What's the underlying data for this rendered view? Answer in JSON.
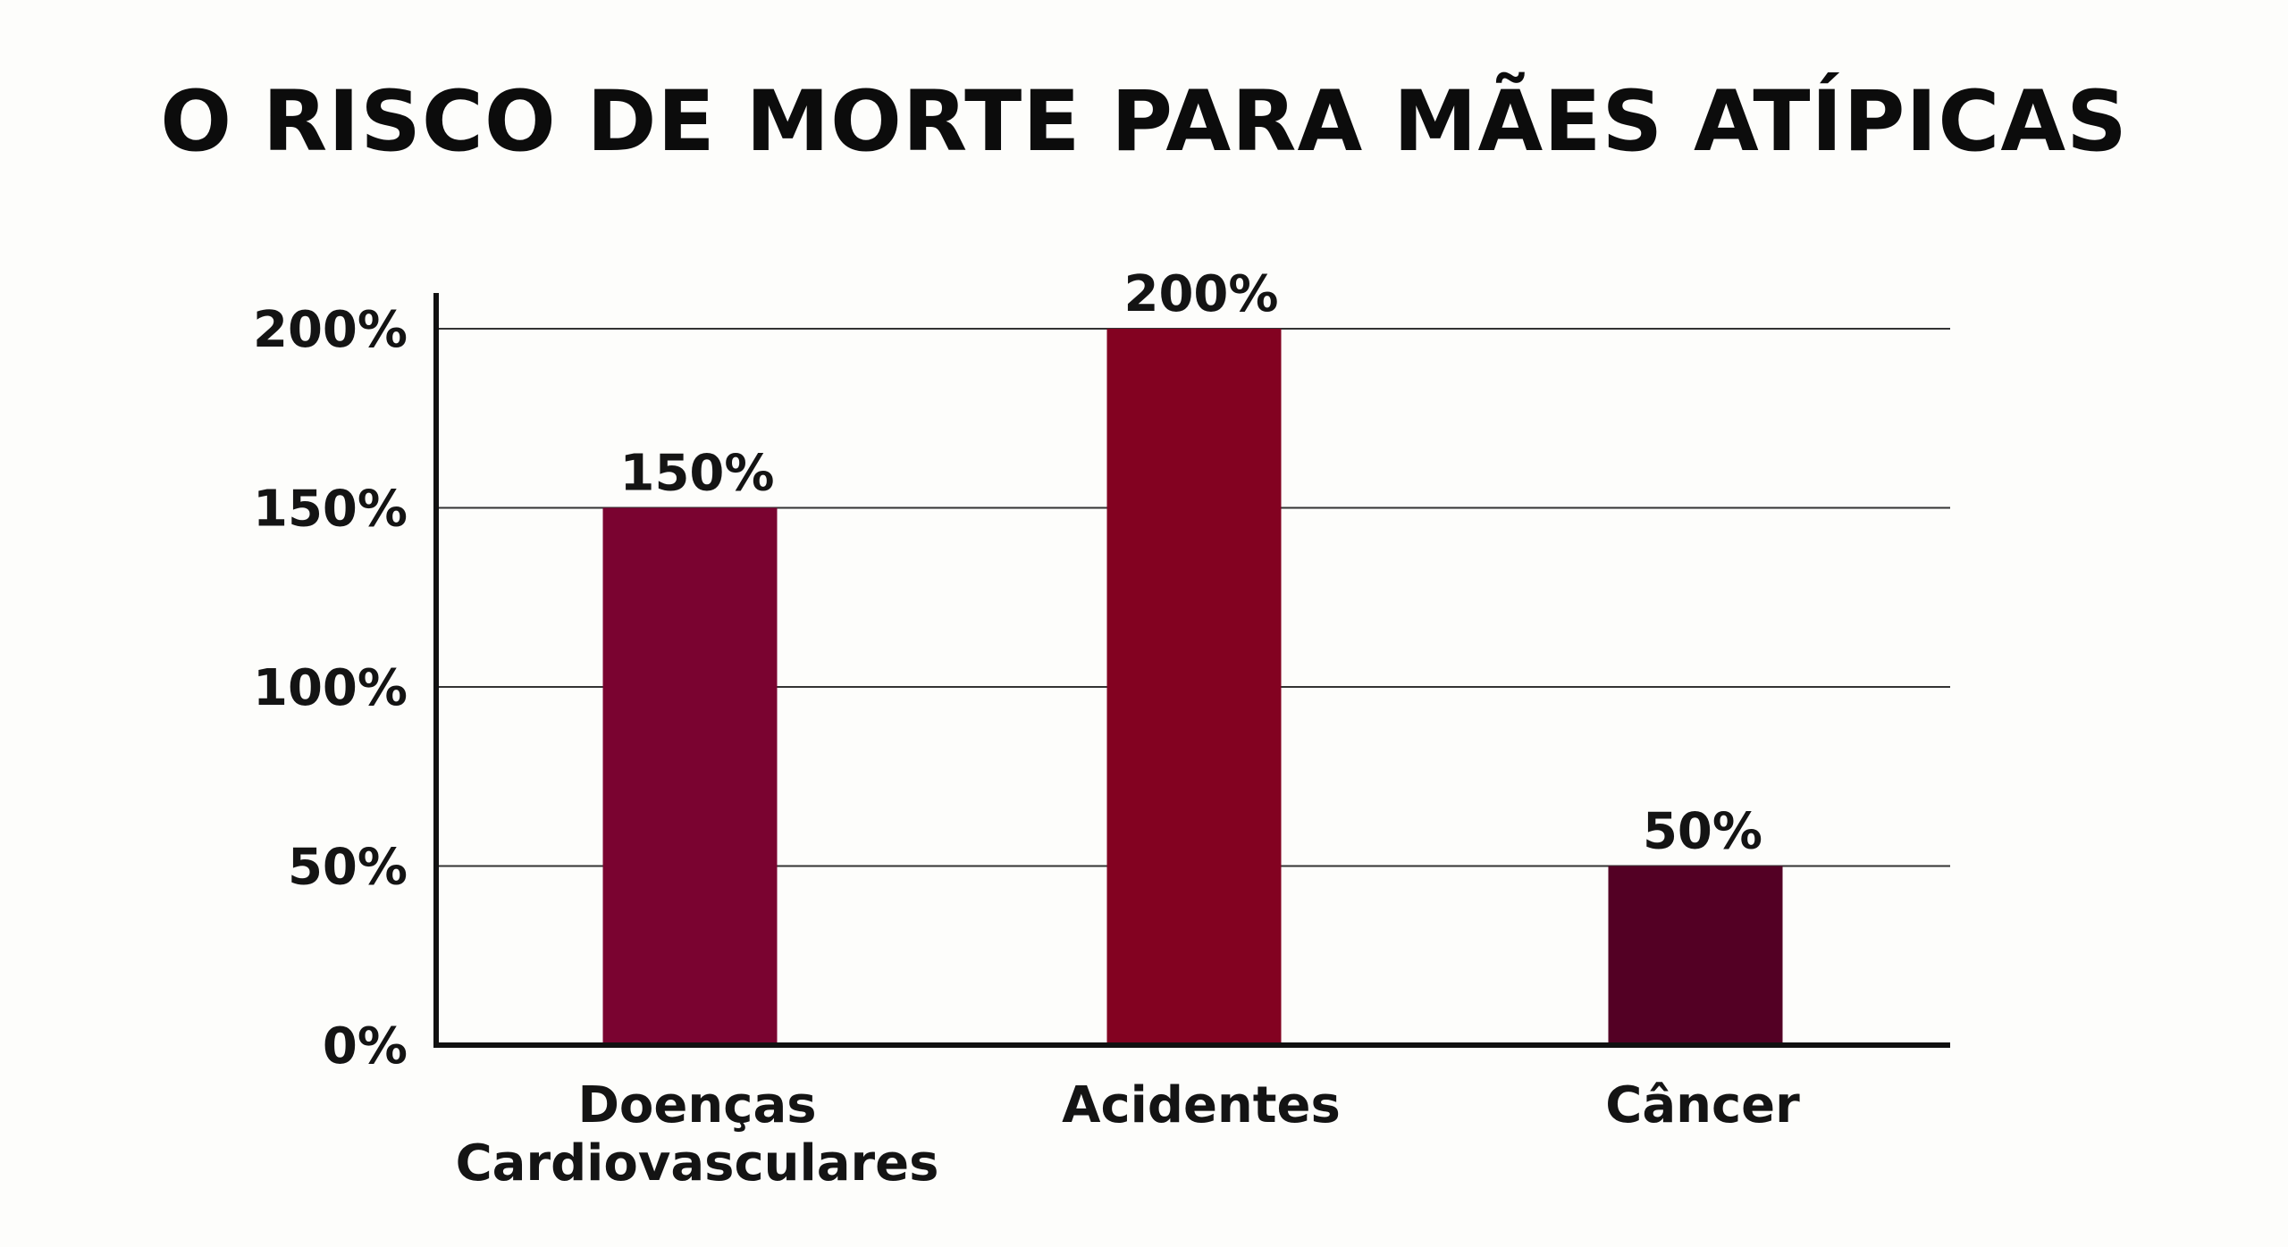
{
  "chart_data": {
    "type": "bar",
    "title": "O RISCO DE MORTE PARA MÃES ATÍPICAS",
    "categories": [
      [
        "Doenças",
        "Cardiovasculares"
      ],
      [
        "Acidentes"
      ],
      [
        "Câncer"
      ]
    ],
    "values": [
      150,
      200,
      50
    ],
    "data_labels": [
      "150%",
      "200%",
      "50%"
    ],
    "ylim": [
      0,
      200
    ],
    "yticks": [
      0,
      50,
      100,
      150,
      200
    ],
    "ytick_labels": [
      "0%",
      "50%",
      "100%",
      "150%",
      "200%"
    ],
    "grid": true,
    "legend": "none",
    "colors": [
      "#7a0330",
      "#830221",
      "#530024"
    ],
    "axis_color": "#111111",
    "grid_color": "#333333"
  }
}
